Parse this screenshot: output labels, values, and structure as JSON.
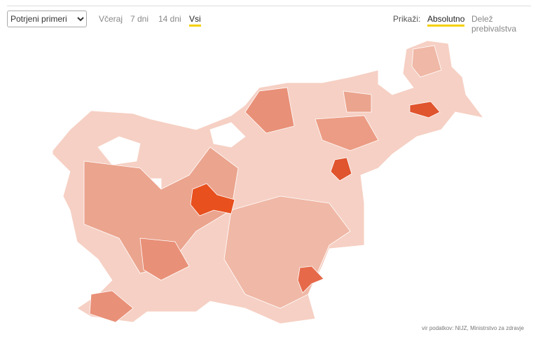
{
  "controls": {
    "metric": "Potrjeni primeri",
    "periods": [
      "Včeraj",
      "7 dni",
      "14 dni",
      "Vsi"
    ],
    "show_label": "Prikaži:",
    "show_options": [
      "Absolutno",
      "Delež prebivalstva"
    ]
  },
  "source": "vir podatkov: NIJZ, Ministrstvo za zdravje"
}
